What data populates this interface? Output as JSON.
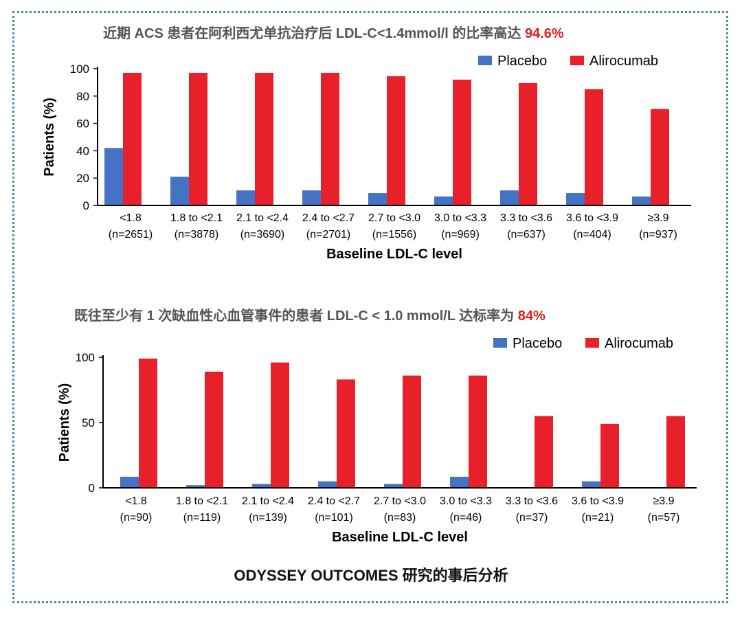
{
  "headings": {
    "top": {
      "text": "近期 ACS 患者在阿利西尤单抗治疗后 LDL-C<1.4mmol/l 的比率高达 ",
      "highlight": "94.6%"
    },
    "bottom": {
      "text": "既往至少有 1 次缺血性心血管事件的患者 LDL-C < 1.0 mmol/L 达标率为 ",
      "highlight": "84%"
    }
  },
  "footer": "ODYSSEY OUTCOMES 研究的事后分析",
  "colors": {
    "placebo": "#4472c4",
    "alirocumab": "#e8202a",
    "frame": "#4f86a8",
    "highlight": "#e02020"
  },
  "chart_data": [
    {
      "type": "bar",
      "title": "",
      "xlabel": "Baseline LDL-C level",
      "ylabel": "Patients (%)",
      "ylim": [
        0,
        100
      ],
      "yticks": [
        0,
        20,
        40,
        60,
        80,
        100
      ],
      "legend": "top-right",
      "categories": [
        "<1.8",
        "1.8 to <2.1",
        "2.1 to <2.4",
        "2.4 to <2.7",
        "2.7 to <3.0",
        "3.0 to <3.3",
        "3.3 to <3.6",
        "3.6 to <3.9",
        "≥3.9"
      ],
      "n_labels": [
        "(n=2651)",
        "(n=3878)",
        "(n=3690)",
        "(n=2701)",
        "(n=1556)",
        "(n=969)",
        "(n=637)",
        "(n=404)",
        "(n=937)"
      ],
      "series": [
        {
          "name": "Placebo",
          "values": [
            42,
            21,
            11,
            11,
            9,
            6.5,
            11,
            9,
            6.5
          ]
        },
        {
          "name": "Alirocumab",
          "values": [
            97,
            97,
            97,
            97,
            94.5,
            92,
            89.5,
            85,
            70.5
          ]
        }
      ]
    },
    {
      "type": "bar",
      "title": "",
      "xlabel": "Baseline LDL-C level",
      "ylabel": "Patients (%)",
      "ylim": [
        0,
        100
      ],
      "yticks": [
        0,
        50,
        100
      ],
      "legend": "top-right",
      "categories": [
        "<1.8",
        "1.8 to <2.1",
        "2.1 to <2.4",
        "2.4 to <2.7",
        "2.7 to <3.0",
        "3.0 to <3.3",
        "3.3 to <3.6",
        "3.6 to <3.9",
        "≥3.9"
      ],
      "n_labels": [
        "(n=90)",
        "(n=119)",
        "(n=139)",
        "(n=101)",
        "(n=83)",
        "(n=46)",
        "(n=37)",
        "(n=21)",
        "(n=57)"
      ],
      "series": [
        {
          "name": "Placebo",
          "values": [
            8.5,
            2,
            3,
            5,
            3,
            8.5,
            0,
            5,
            0
          ]
        },
        {
          "name": "Alirocumab",
          "values": [
            99,
            89,
            96,
            83,
            86,
            86,
            55,
            49,
            55
          ]
        }
      ]
    }
  ]
}
